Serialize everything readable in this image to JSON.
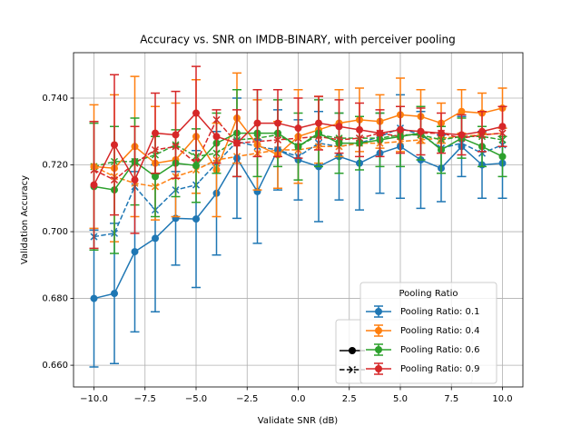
{
  "chart_data": {
    "type": "errorbar_line",
    "title": "Accuracy vs. SNR on IMDB-BINARY, with perceiver pooling",
    "x_label": "Validate SNR (dB)",
    "y_label": "Validation Accuracy",
    "x": [
      -10,
      -9,
      -8,
      -7,
      -6,
      -5,
      -4,
      -3,
      -2,
      -1,
      0,
      1,
      2,
      3,
      4,
      5,
      6,
      7,
      8,
      9,
      10
    ],
    "xlim": [
      -11,
      11
    ],
    "xticks": [
      {
        "value": -10,
        "label": "−10.0"
      },
      {
        "value": -7.5,
        "label": "−7.5"
      },
      {
        "value": -5,
        "label": "−5.0"
      },
      {
        "value": -2.5,
        "label": "−2.5"
      },
      {
        "value": 0,
        "label": "0.0"
      },
      {
        "value": 2.5,
        "label": "2.5"
      },
      {
        "value": 5,
        "label": "5.0"
      },
      {
        "value": 7.5,
        "label": "7.5"
      },
      {
        "value": 10,
        "label": "10.0"
      }
    ],
    "ylim": [
      0.6535,
      0.7536
    ],
    "yticks": [
      {
        "value": 0.66,
        "label": "0.660"
      },
      {
        "value": 0.68,
        "label": "0.680"
      },
      {
        "value": 0.7,
        "label": "0.700"
      },
      {
        "value": 0.72,
        "label": "0.720"
      },
      {
        "value": 0.74,
        "label": "0.740"
      }
    ],
    "grid": true,
    "legend_title": "Pooling Ratio",
    "legend_position": "lower right",
    "series": [
      {
        "name": "Pooling Ratio: 0.1",
        "color": "#1f77b4",
        "values": [
          0.68,
          0.6815,
          0.694,
          0.698,
          0.704,
          0.7038,
          0.7115,
          0.722,
          0.712,
          0.7245,
          0.7215,
          0.7195,
          0.7225,
          0.7205,
          0.7235,
          0.7255,
          0.7215,
          0.719,
          0.7255,
          0.72,
          0.7205
        ],
        "errors": [
          0.0205,
          0.021,
          0.024,
          0.022,
          0.014,
          0.0205,
          0.0185,
          0.018,
          0.0155,
          0.012,
          0.012,
          0.0165,
          0.013,
          0.014,
          0.012,
          0.0155,
          0.0145,
          0.01,
          0.009,
          0.01,
          0.0105
        ]
      },
      {
        "name": "Pooling Ratio: 0.4",
        "color": "#ff7f0e",
        "values": [
          0.7195,
          0.719,
          0.7255,
          0.7205,
          0.7215,
          0.7285,
          0.7185,
          0.734,
          0.726,
          0.723,
          0.7285,
          0.7305,
          0.7325,
          0.7335,
          0.733,
          0.735,
          0.7345,
          0.7325,
          0.736,
          0.7355,
          0.737
        ],
        "errors": [
          0.0185,
          0.022,
          0.021,
          0.017,
          0.017,
          0.017,
          0.014,
          0.0135,
          0.0135,
          0.01,
          0.014,
          0.01,
          0.01,
          0.0095,
          0.008,
          0.011,
          0.008,
          0.006,
          0.0065,
          0.006,
          0.006
        ]
      },
      {
        "name": "Pooling Ratio: 0.6",
        "color": "#2ca02c",
        "values": [
          0.7135,
          0.7125,
          0.721,
          0.7165,
          0.7205,
          0.7198,
          0.7265,
          0.7295,
          0.7295,
          0.7295,
          0.7255,
          0.7295,
          0.7265,
          0.7265,
          0.7275,
          0.7285,
          0.7295,
          0.7245,
          0.728,
          0.7255,
          0.7225
        ],
        "errors": [
          0.019,
          0.019,
          0.013,
          0.012,
          0.01,
          0.011,
          0.009,
          0.013,
          0.013,
          0.01,
          0.01,
          0.01,
          0.009,
          0.008,
          0.008,
          0.009,
          0.008,
          0.007,
          0.006,
          0.006,
          0.006
        ]
      },
      {
        "name": "Pooling Ratio: 0.9",
        "color": "#d62728",
        "values": [
          0.714,
          0.726,
          0.7155,
          0.7295,
          0.729,
          0.7355,
          0.7285,
          0.7265,
          0.7325,
          0.7325,
          0.731,
          0.7325,
          0.7315,
          0.7305,
          0.7295,
          0.7305,
          0.73,
          0.7295,
          0.729,
          0.73,
          0.7315
        ],
        "errors": [
          0.019,
          0.021,
          0.016,
          0.012,
          0.013,
          0.014,
          0.008,
          0.01,
          0.01,
          0.01,
          0.009,
          0.008,
          0.008,
          0.008,
          0.007,
          0.007,
          0.007,
          0.006,
          0.006,
          0.006,
          0.006
        ]
      }
    ],
    "dashed_series": [
      {
        "color": "#1f77b4",
        "values": [
          0.6985,
          0.6995,
          0.7135,
          0.7065,
          0.7125,
          0.714,
          0.7205,
          0.727,
          0.7255,
          0.7245,
          0.7225,
          0.7265,
          0.7255,
          0.7265,
          0.7285,
          0.731,
          0.729,
          0.725,
          0.7265,
          0.7235,
          0.726
        ]
      },
      {
        "color": "#ff7f0e",
        "values": [
          0.7195,
          0.7165,
          0.7145,
          0.7135,
          0.7165,
          0.7185,
          0.7215,
          0.7225,
          0.7235,
          0.7245,
          0.7245,
          0.7255,
          0.7255,
          0.7265,
          0.7265,
          0.727,
          0.7275,
          0.728,
          0.7285,
          0.729,
          0.7295
        ]
      },
      {
        "color": "#2ca02c",
        "values": [
          0.7195,
          0.721,
          0.721,
          0.723,
          0.726,
          0.7225,
          0.7235,
          0.7275,
          0.728,
          0.729,
          0.7255,
          0.729,
          0.728,
          0.728,
          0.728,
          0.729,
          0.729,
          0.7275,
          0.7285,
          0.7285,
          0.7275
        ]
      },
      {
        "color": "#d62728",
        "values": [
          0.7185,
          0.7155,
          0.7205,
          0.7245,
          0.7255,
          0.7205,
          0.7335,
          0.7265,
          0.727,
          0.7275,
          0.728,
          0.7285,
          0.7275,
          0.728,
          0.7295,
          0.7285,
          0.7295,
          0.7295,
          0.728,
          0.729,
          0.7295
        ]
      }
    ]
  }
}
